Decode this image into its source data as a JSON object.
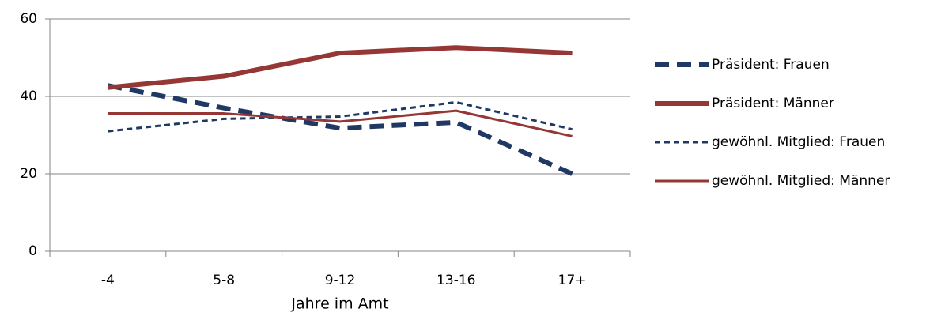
{
  "chart_data": {
    "type": "line",
    "x_label": "Jahre im Amt",
    "categories": [
      "-4",
      "5-8",
      "9-12",
      "13-16",
      "17+"
    ],
    "ylim": [
      0,
      60
    ],
    "yticks": [
      0,
      20,
      40,
      60
    ],
    "grid": true,
    "legend": "right",
    "series": [
      {
        "name": "Präsident: Frauen",
        "color": "#1f3864",
        "width": 6,
        "dash": "18 10",
        "values": [
          42.8,
          37,
          31.8,
          33.3,
          20
        ]
      },
      {
        "name": "Präsident: Männer",
        "color": "#953735",
        "width": 6,
        "dash": "none",
        "values": [
          42.3,
          45.2,
          51.2,
          52.6,
          51.2
        ]
      },
      {
        "name": "gewöhnl. Mitglied: Frauen",
        "color": "#1f3864",
        "width": 3,
        "dash": "7 5",
        "values": [
          31,
          34.2,
          34.8,
          38.5,
          31.5
        ]
      },
      {
        "name": "gewöhnl. Mitglied: Männer",
        "color": "#953735",
        "width": 3,
        "dash": "none",
        "values": [
          35.6,
          35.6,
          33.5,
          36.3,
          29.7
        ]
      }
    ]
  }
}
